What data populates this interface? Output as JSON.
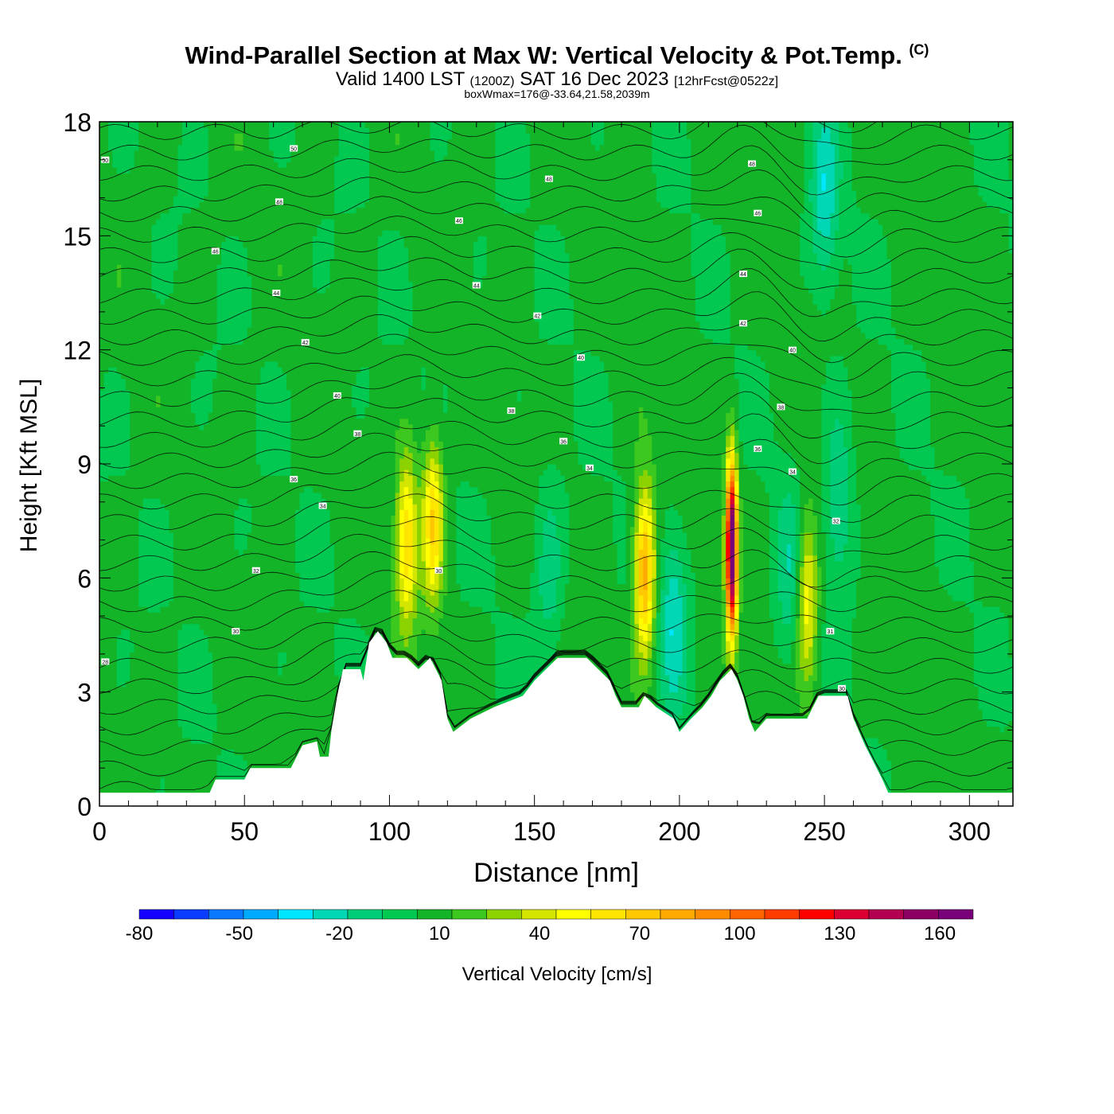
{
  "title": {
    "main": "Wind-Parallel Section at Max W: Vertical Velocity & Pot.Temp.",
    "copyright": "(C)",
    "valid_prefix": "Valid 1400 LST",
    "valid_utc": "(1200Z)",
    "valid_date": "SAT 16 Dec 2023",
    "forecast": "[12hrFcst@0522z]",
    "box_wmax": "boxWmax=176@-33.64,21.58,2039m"
  },
  "chart_data": {
    "type": "heatmap",
    "xlabel": "Distance [nm]",
    "ylabel": "Height [Kft MSL]",
    "xlim": [
      0,
      315
    ],
    "ylim": [
      0,
      18
    ],
    "x_ticks": [
      0,
      50,
      100,
      150,
      200,
      250,
      300
    ],
    "y_ticks": [
      0,
      3,
      6,
      9,
      12,
      15,
      18
    ],
    "colorbar": {
      "label": "Vertical Velocity [cm/s]",
      "range": [
        -80,
        170
      ],
      "tick_values": [
        -80,
        -50,
        -20,
        10,
        40,
        70,
        100,
        130,
        160
      ],
      "colors": [
        "#1400ff",
        "#0a3cff",
        "#0a78ff",
        "#00aaff",
        "#00e6ff",
        "#00d7b4",
        "#00cd78",
        "#00c850",
        "#14b428",
        "#3cc81e",
        "#8cd200",
        "#d2e600",
        "#ffff00",
        "#ffe600",
        "#ffc800",
        "#ffaa00",
        "#ff8c00",
        "#ff6400",
        "#ff3c00",
        "#ff0000",
        "#dc0032",
        "#b40050",
        "#8c0064",
        "#780078"
      ]
    },
    "terrain": [
      [
        0,
        0.35
      ],
      [
        38,
        0.35
      ],
      [
        40,
        0.7
      ],
      [
        50,
        0.7
      ],
      [
        52,
        1.0
      ],
      [
        66,
        1.0
      ],
      [
        68,
        1.3
      ],
      [
        70,
        1.6
      ],
      [
        75,
        1.7
      ],
      [
        76,
        1.3
      ],
      [
        79,
        1.3
      ],
      [
        80,
        2.0
      ],
      [
        82,
        2.9
      ],
      [
        84,
        3.6
      ],
      [
        90,
        3.6
      ],
      [
        91,
        3.3
      ],
      [
        93,
        4.3
      ],
      [
        96,
        4.6
      ],
      [
        99,
        4.3
      ],
      [
        101,
        3.9
      ],
      [
        106,
        3.9
      ],
      [
        110,
        3.6
      ],
      [
        114,
        3.9
      ],
      [
        118,
        3.3
      ],
      [
        120,
        2.3
      ],
      [
        122,
        1.95
      ],
      [
        128,
        2.3
      ],
      [
        136,
        2.6
      ],
      [
        146,
        2.9
      ],
      [
        150,
        3.3
      ],
      [
        154,
        3.6
      ],
      [
        158,
        3.9
      ],
      [
        168,
        3.9
      ],
      [
        172,
        3.6
      ],
      [
        176,
        3.3
      ],
      [
        178,
        2.9
      ],
      [
        180,
        2.6
      ],
      [
        186,
        2.6
      ],
      [
        188,
        2.9
      ],
      [
        192,
        2.6
      ],
      [
        198,
        2.3
      ],
      [
        200,
        1.95
      ],
      [
        204,
        2.3
      ],
      [
        208,
        2.6
      ],
      [
        211,
        2.9
      ],
      [
        214,
        3.3
      ],
      [
        218,
        3.6
      ],
      [
        220,
        3.3
      ],
      [
        222,
        2.9
      ],
      [
        224,
        2.3
      ],
      [
        226,
        1.95
      ],
      [
        230,
        2.3
      ],
      [
        244,
        2.3
      ],
      [
        246,
        2.6
      ],
      [
        248,
        2.9
      ],
      [
        258,
        2.9
      ],
      [
        260,
        2.3
      ],
      [
        262,
        1.95
      ],
      [
        264,
        1.6
      ],
      [
        266,
        1.3
      ],
      [
        268,
        1.0
      ],
      [
        270,
        0.7
      ],
      [
        272,
        0.35
      ],
      [
        315,
        0.35
      ]
    ],
    "updraft_cores": [
      {
        "x": 106,
        "z": 7.0,
        "w": 60
      },
      {
        "x": 115,
        "z": 7.5,
        "w": 60
      },
      {
        "x": 188,
        "z": 6.2,
        "w": 80
      },
      {
        "x": 218,
        "z": 6.8,
        "w": 176
      },
      {
        "x": 244,
        "z": 5.5,
        "w": 50
      }
    ],
    "downdraft_cores": [
      {
        "x": 155,
        "z": 6.0,
        "w": -20
      },
      {
        "x": 198,
        "z": 5.0,
        "w": -30
      },
      {
        "x": 238,
        "z": 6.0,
        "w": -20
      },
      {
        "x": 255,
        "z": 8.0,
        "w": -25
      },
      {
        "x": 250,
        "z": 16.0,
        "w": -30
      }
    ],
    "theta_labels": [
      {
        "x": 2,
        "z": 17.0,
        "v": "50"
      },
      {
        "x": 67,
        "z": 17.3,
        "v": "50"
      },
      {
        "x": 62,
        "z": 15.9,
        "v": "48"
      },
      {
        "x": 40,
        "z": 14.6,
        "v": "46"
      },
      {
        "x": 61,
        "z": 13.5,
        "v": "44"
      },
      {
        "x": 71,
        "z": 12.2,
        "v": "42"
      },
      {
        "x": 82,
        "z": 10.8,
        "v": "40"
      },
      {
        "x": 89,
        "z": 9.8,
        "v": "38"
      },
      {
        "x": 67,
        "z": 8.6,
        "v": "36"
      },
      {
        "x": 77,
        "z": 7.9,
        "v": "34"
      },
      {
        "x": 54,
        "z": 6.2,
        "v": "32"
      },
      {
        "x": 47,
        "z": 4.6,
        "v": "30"
      },
      {
        "x": 2,
        "z": 3.8,
        "v": "28"
      },
      {
        "x": 124,
        "z": 15.4,
        "v": "46"
      },
      {
        "x": 155,
        "z": 16.5,
        "v": "48"
      },
      {
        "x": 130,
        "z": 13.7,
        "v": "44"
      },
      {
        "x": 151,
        "z": 12.9,
        "v": "42"
      },
      {
        "x": 166,
        "z": 11.8,
        "v": "40"
      },
      {
        "x": 142,
        "z": 10.4,
        "v": "38"
      },
      {
        "x": 160,
        "z": 9.6,
        "v": "36"
      },
      {
        "x": 169,
        "z": 8.9,
        "v": "34"
      },
      {
        "x": 117,
        "z": 6.2,
        "v": "30"
      },
      {
        "x": 225,
        "z": 16.9,
        "v": "48"
      },
      {
        "x": 227,
        "z": 15.6,
        "v": "46"
      },
      {
        "x": 222,
        "z": 14.0,
        "v": "44"
      },
      {
        "x": 222,
        "z": 12.7,
        "v": "42"
      },
      {
        "x": 239,
        "z": 12.0,
        "v": "40"
      },
      {
        "x": 235,
        "z": 10.5,
        "v": "38"
      },
      {
        "x": 227,
        "z": 9.4,
        "v": "36"
      },
      {
        "x": 239,
        "z": 8.8,
        "v": "34"
      },
      {
        "x": 254,
        "z": 7.5,
        "v": "32"
      },
      {
        "x": 252,
        "z": 4.6,
        "v": "31"
      },
      {
        "x": 256,
        "z": 3.1,
        "v": "30"
      }
    ]
  }
}
